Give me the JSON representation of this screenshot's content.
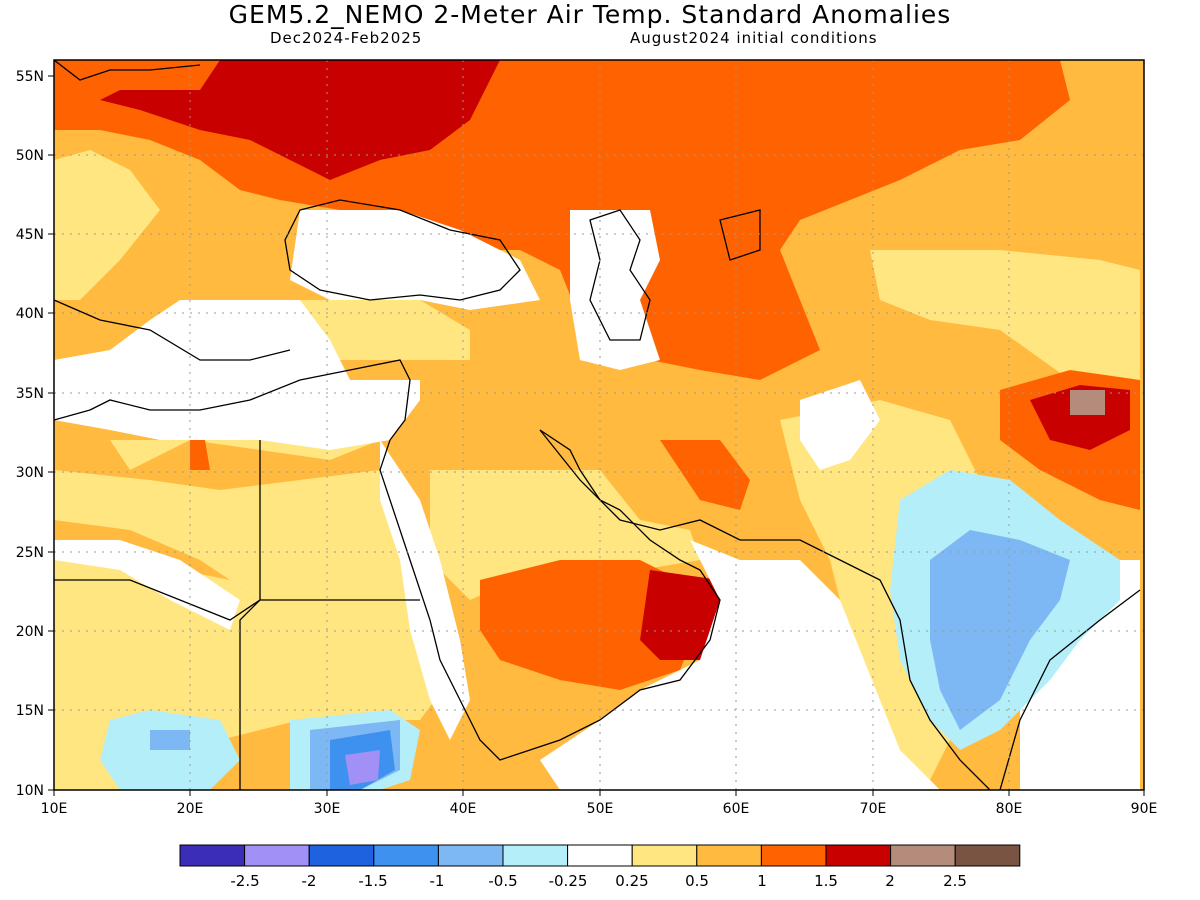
{
  "header": {
    "title": "GEM5.2_NEMO 2-Meter Air Temp. Standard Anomalies",
    "period": "Dec2024-Feb2025",
    "init": "August2024 initial conditions"
  },
  "map": {
    "lon_ticks": [
      "10E",
      "20E",
      "30E",
      "40E",
      "50E",
      "60E",
      "70E",
      "80E",
      "90E"
    ],
    "lat_ticks": [
      "55N",
      "50N",
      "45N",
      "40N",
      "35N",
      "30N",
      "25N",
      "20N",
      "15N",
      "10N"
    ],
    "lon_range": [
      10,
      90
    ],
    "lat_range": [
      10,
      56
    ],
    "grid": "dotted"
  },
  "colorbar": {
    "colors": [
      "#3b2db8",
      "#a190f5",
      "#1f62e0",
      "#3f91f0",
      "#7db8f5",
      "#b4eef8",
      "#ffffff",
      "#ffe680",
      "#ffba3f",
      "#ff6200",
      "#c80000",
      "#b58c7c",
      "#7a5443"
    ],
    "labels": [
      "-2.5",
      "-2",
      "-1.5",
      "-1",
      "-0.5",
      "-0.25",
      "0.25",
      "0.5",
      "1",
      "1.5",
      "2",
      "2.5"
    ]
  },
  "anomaly_regions": [
    {
      "level": "1.5",
      "color": "#ff6200"
    },
    {
      "level": "2",
      "color": "#c80000"
    },
    {
      "level": "1",
      "color": "#ffba3f"
    },
    {
      "level": "0.5",
      "color": "#ffe680"
    },
    {
      "level": "-0.5",
      "color": "#7db8f5"
    },
    {
      "level": "-0.25",
      "color": "#b4eef8"
    },
    {
      "level": "-1.5",
      "color": "#3f91f0"
    },
    {
      "level": "-2.5",
      "color": "#a190f5"
    },
    {
      "level": "2.5",
      "color": "#b58c7c"
    }
  ]
}
